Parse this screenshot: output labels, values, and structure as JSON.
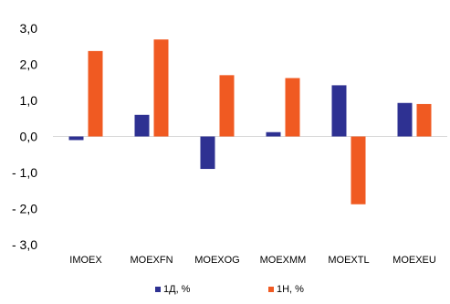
{
  "chart_data": {
    "type": "bar",
    "categories": [
      "IMOEX",
      "MOEXFN",
      "MOEXOG",
      "MOEXMM",
      "MOEXTL",
      "MOEXEU"
    ],
    "series": [
      {
        "name": "1Д, %",
        "color": "#2E3192",
        "values": [
          -0.1,
          0.6,
          -0.9,
          0.12,
          1.42,
          0.93
        ]
      },
      {
        "name": "1Н, %",
        "color": "#F05A22",
        "values": [
          2.37,
          2.69,
          1.7,
          1.62,
          -1.88,
          0.9
        ]
      }
    ],
    "ylim": [
      -3,
      3
    ],
    "yticks": [
      3,
      2,
      1,
      0,
      -1,
      -2,
      -3
    ],
    "ytick_labels": [
      "3,0",
      "2,0",
      "1,0",
      "0,0",
      "- 1,0",
      "- 2,0",
      "- 3,0"
    ],
    "grid": false,
    "legend_position": "bottom",
    "title": "",
    "xlabel": "",
    "ylabel": ""
  }
}
